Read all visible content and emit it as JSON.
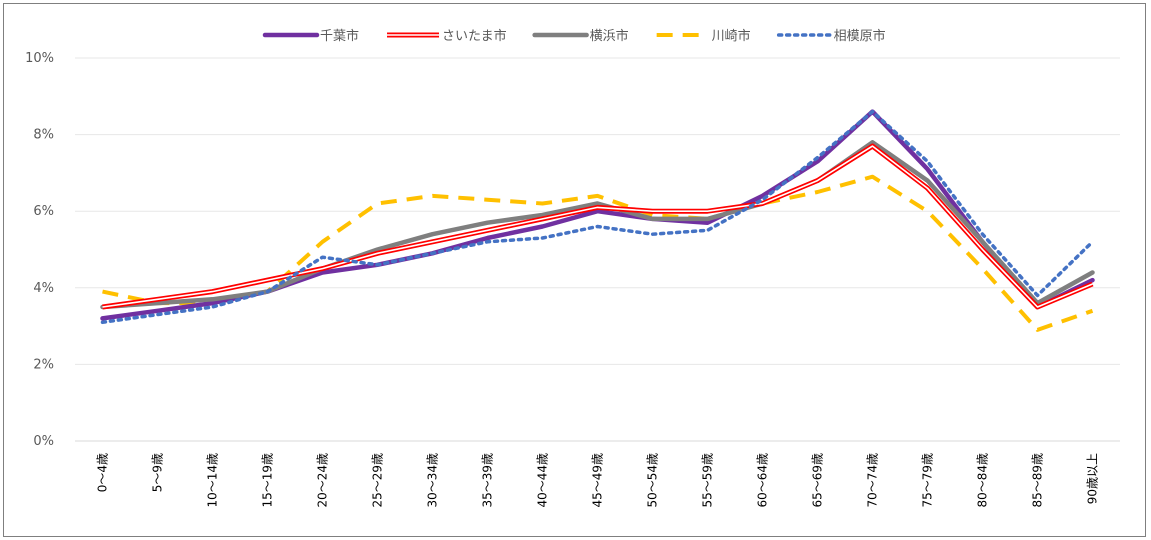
{
  "chart_data": {
    "type": "line",
    "title": "",
    "xlabel": "",
    "ylabel": "",
    "ylim": [
      0,
      10
    ],
    "yticks": [
      "0%",
      "2%",
      "4%",
      "6%",
      "8%",
      "10%"
    ],
    "grid": true,
    "legend_position": "top-center",
    "categories": [
      "0～4歳",
      "5～9歳",
      "10～14歳",
      "15～19歳",
      "20～24歳",
      "25～29歳",
      "30～34歳",
      "35～39歳",
      "40～44歳",
      "45～49歳",
      "50～54歳",
      "55～59歳",
      "60～64歳",
      "65～69歳",
      "70～74歳",
      "75～79歳",
      "80～84歳",
      "85～89歳",
      "90歳以上"
    ],
    "series": [
      {
        "name": "千葉市",
        "color": "#7030a0",
        "style": "solid-thick",
        "values": [
          3.2,
          3.4,
          3.6,
          3.9,
          4.4,
          4.6,
          4.9,
          5.3,
          5.6,
          6.0,
          5.8,
          5.7,
          6.4,
          7.3,
          8.6,
          7.1,
          5.2,
          3.5,
          4.2
        ]
      },
      {
        "name": "さいたま市",
        "color": "#ff0000",
        "style": "double",
        "values": [
          3.5,
          3.7,
          3.9,
          4.2,
          4.5,
          4.9,
          5.2,
          5.5,
          5.8,
          6.1,
          6.0,
          6.0,
          6.2,
          6.8,
          7.7,
          6.6,
          5.0,
          3.5,
          4.1
        ]
      },
      {
        "name": "横浜市",
        "color": "#7f7f7f",
        "style": "solid-thick",
        "values": [
          3.5,
          3.6,
          3.7,
          3.9,
          4.5,
          5.0,
          5.4,
          5.7,
          5.9,
          6.2,
          5.8,
          5.8,
          6.2,
          6.8,
          7.8,
          6.8,
          5.2,
          3.6,
          4.4
        ]
      },
      {
        "name": "川崎市",
        "color": "#ffc000",
        "style": "dashed",
        "values": [
          3.9,
          3.6,
          3.6,
          3.9,
          5.2,
          6.2,
          6.4,
          6.3,
          6.2,
          6.4,
          5.9,
          5.8,
          6.2,
          6.5,
          6.9,
          6.0,
          4.5,
          2.9,
          3.4
        ]
      },
      {
        "name": "相模原市",
        "color": "#4472c4",
        "style": "dotted",
        "values": [
          3.1,
          3.3,
          3.5,
          3.9,
          4.8,
          4.6,
          4.9,
          5.2,
          5.3,
          5.6,
          5.4,
          5.5,
          6.3,
          7.4,
          8.6,
          7.3,
          5.4,
          3.8,
          5.2
        ]
      }
    ]
  }
}
